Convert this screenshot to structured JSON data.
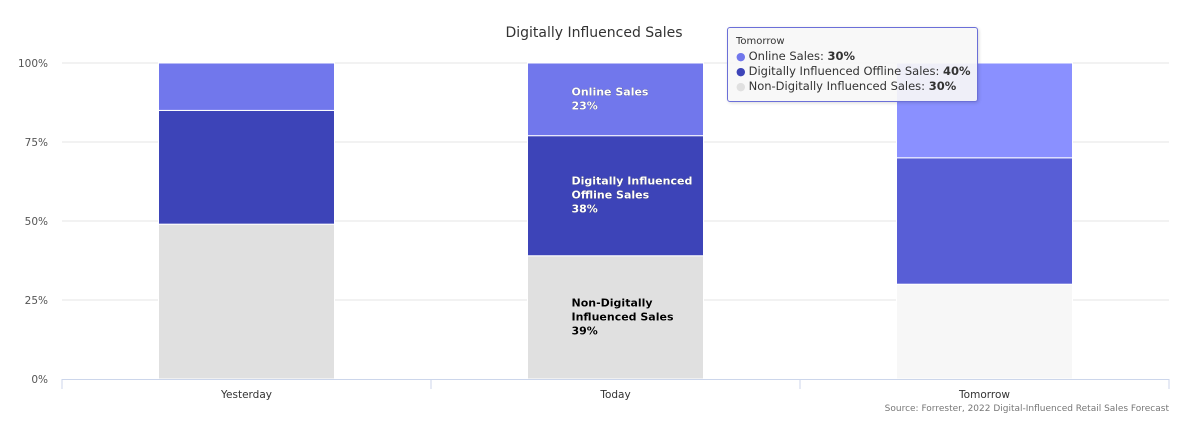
{
  "chart_data": {
    "type": "bar",
    "stacked": true,
    "normalized": true,
    "title": "Digitally Influenced Sales",
    "categories": [
      "Yesterday",
      "Today",
      "Tomorrow"
    ],
    "series": [
      {
        "name": "Online Sales",
        "values": [
          15,
          23,
          30
        ],
        "color": "#7177ec"
      },
      {
        "name": "Digitally Influenced Offline Sales",
        "values": [
          36,
          38,
          40
        ],
        "color": "#3d44b8"
      },
      {
        "name": "Non-Digitally Influenced Sales",
        "values": [
          49,
          39,
          30
        ],
        "color": "#e0e0e0"
      }
    ],
    "highlight_colors": {
      "Tomorrow": [
        "#8a90ff",
        "#585ed6",
        "#f7f7f7"
      ]
    },
    "y_ticks": [
      "0%",
      "25%",
      "50%",
      "75%",
      "100%"
    ],
    "ylim": [
      0,
      100
    ],
    "grid": true,
    "data_labels": {
      "category": "Today",
      "items": [
        {
          "series": "Online Sales",
          "lines": [
            "Online Sales",
            "23%"
          ],
          "color": "#ffffff"
        },
        {
          "series": "Digitally Influenced Offline Sales",
          "lines": [
            "Digitally Influenced",
            "Offline Sales",
            "38%"
          ],
          "color": "#ffffff"
        },
        {
          "series": "Non-Digitally Influenced Sales",
          "lines": [
            "Non-Digitally",
            "Influenced Sales",
            "39%"
          ],
          "color": "#000000"
        }
      ]
    },
    "credits": "Source: Forrester, 2022 Digital-Influenced Retail Sales Forecast"
  },
  "tooltip": {
    "header": "Tomorrow",
    "rows": [
      {
        "label": "Online Sales: ",
        "value": "30%",
        "color": "#7177ec"
      },
      {
        "label": "Digitally Influenced Offline Sales: ",
        "value": "40%",
        "color": "#3d44b8"
      },
      {
        "label": "Non-Digitally Influenced Sales: ",
        "value": "30%",
        "color": "#e0e0e0"
      }
    ]
  }
}
